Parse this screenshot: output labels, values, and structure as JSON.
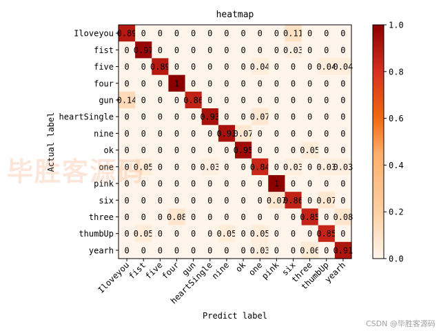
{
  "chart_data": {
    "type": "heatmap",
    "title": "heatmap",
    "xlabel": "Predict label",
    "ylabel": "Actual label",
    "labels": [
      "Iloveyou",
      "fist",
      "five",
      "four",
      "gun",
      "heartSingle",
      "nine",
      "ok",
      "one",
      "pink",
      "six",
      "three",
      "thumbUp",
      "yearh"
    ],
    "matrix": [
      [
        0.89,
        0.0,
        0.0,
        0.0,
        0.0,
        0.0,
        0.0,
        0.0,
        0.0,
        0.0,
        0.11,
        0.0,
        0.0,
        0.0
      ],
      [
        0.0,
        0.97,
        0.0,
        0.0,
        0.0,
        0.0,
        0.0,
        0.0,
        0.0,
        0.0,
        0.03,
        0.0,
        0.0,
        0.0
      ],
      [
        0.0,
        0.0,
        0.89,
        0.0,
        0.0,
        0.0,
        0.0,
        0.0,
        0.04,
        0.0,
        0.0,
        0.0,
        0.04,
        0.04
      ],
      [
        0.0,
        0.0,
        0.0,
        1.0,
        0.0,
        0.0,
        0.0,
        0.0,
        0.0,
        0.0,
        0.0,
        0.0,
        0.0,
        0.0
      ],
      [
        0.14,
        0.0,
        0.0,
        0.0,
        0.86,
        0.0,
        0.0,
        0.0,
        0.0,
        0.0,
        0.0,
        0.0,
        0.0,
        0.0
      ],
      [
        0.0,
        0.0,
        0.0,
        0.0,
        0.0,
        0.93,
        0.0,
        0.0,
        0.07,
        0.0,
        0.0,
        0.0,
        0.0,
        0.0
      ],
      [
        0.0,
        0.0,
        0.0,
        0.0,
        0.0,
        0.0,
        0.93,
        0.07,
        0.0,
        0.0,
        0.0,
        0.0,
        0.0,
        0.0
      ],
      [
        0.0,
        0.0,
        0.0,
        0.0,
        0.0,
        0.0,
        0.0,
        0.95,
        0.0,
        0.0,
        0.0,
        0.05,
        0.0,
        0.0
      ],
      [
        0.0,
        0.05,
        0.0,
        0.0,
        0.0,
        0.03,
        0.0,
        0.0,
        0.84,
        0.0,
        0.03,
        0.0,
        0.03,
        0.03
      ],
      [
        0.0,
        0.0,
        0.0,
        0.0,
        0.0,
        0.0,
        0.0,
        0.0,
        0.0,
        1.0,
        0.0,
        0.0,
        0.0,
        0.0
      ],
      [
        0.0,
        0.0,
        0.0,
        0.0,
        0.0,
        0.0,
        0.0,
        0.0,
        0.0,
        0.07,
        0.86,
        0.0,
        0.07,
        0.0
      ],
      [
        0.0,
        0.0,
        0.0,
        0.08,
        0.0,
        0.0,
        0.0,
        0.0,
        0.0,
        0.0,
        0.0,
        0.85,
        0.0,
        0.08
      ],
      [
        0.0,
        0.05,
        0.0,
        0.0,
        0.0,
        0.0,
        0.05,
        0.0,
        0.05,
        0.0,
        0.0,
        0.0,
        0.85,
        0.0
      ],
      [
        0.0,
        0.0,
        0.0,
        0.0,
        0.0,
        0.0,
        0.0,
        0.0,
        0.03,
        0.0,
        0.0,
        0.06,
        0.0,
        0.91
      ]
    ],
    "colorbar": {
      "range": [
        0.0,
        1.0
      ],
      "ticks": [
        "0.0",
        "0.2",
        "0.4",
        "0.6",
        "0.8",
        "1.0"
      ]
    },
    "colormap": [
      "#fff5eb",
      "#fdd0a2",
      "#fd8d3c",
      "#e31a1c",
      "#bd0026",
      "#800026"
    ]
  },
  "watermark": "毕胜客源码",
  "credit": "CSDN @毕胜客源码"
}
